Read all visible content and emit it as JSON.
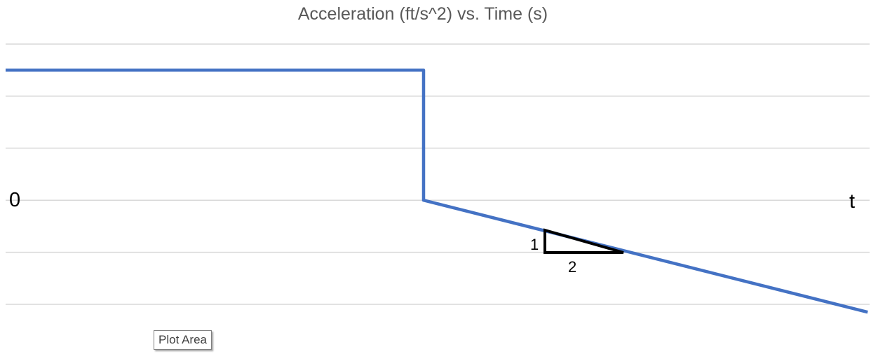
{
  "chart_data": {
    "type": "line",
    "title": "Acceleration (ft/s^2) vs. Time (s)",
    "origin_label": "0",
    "x_axis_label": "t",
    "gridlines": true,
    "gridline_count": 6,
    "series": [
      {
        "color": "#4472C4",
        "points": [
          {
            "x": 0,
            "y": 2.5
          },
          {
            "x": 8,
            "y": 2.5
          },
          {
            "x": 8,
            "y": 0
          },
          {
            "x": 16.5,
            "y": -2.15
          }
        ]
      }
    ],
    "slope_triangle": {
      "rise_label": "1",
      "run_label": "2"
    }
  },
  "tooltip": {
    "text": "Plot Area"
  }
}
